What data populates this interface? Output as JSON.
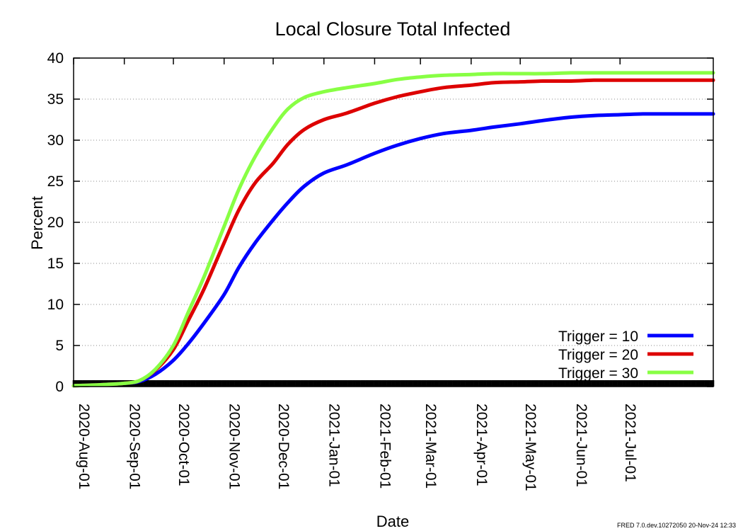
{
  "chart_data": {
    "type": "line",
    "title": "Local Closure Total Infected",
    "xlabel": "Date",
    "ylabel": "Percent",
    "ylim": [
      0,
      40
    ],
    "yticks": [
      "0",
      "5",
      "10",
      "15",
      "20",
      "25",
      "30",
      "35",
      "40"
    ],
    "xlim": [
      "2020-08-01",
      "2021-08-27"
    ],
    "xticks": [
      "2020-Aug-01",
      "2020-Sep-01",
      "2020-Oct-01",
      "2020-Nov-01",
      "2020-Dec-01",
      "2021-Jan-01",
      "2021-Feb-01",
      "2021-Mar-01",
      "2021-Apr-01",
      "2021-May-01",
      "2021-Jun-01",
      "2021-Jul-01"
    ],
    "grid": "horizontal dotted",
    "legend_position": "bottom-right",
    "series": [
      {
        "name": "Trigger = 10",
        "color": "#0000ff",
        "x": [
          "2020-08-01",
          "2020-08-15",
          "2020-08-25",
          "2020-09-01",
          "2020-09-10",
          "2020-09-20",
          "2020-10-01",
          "2020-10-10",
          "2020-10-20",
          "2020-11-01",
          "2020-11-10",
          "2020-11-20",
          "2020-12-01",
          "2020-12-10",
          "2020-12-20",
          "2021-01-01",
          "2021-01-15",
          "2021-02-01",
          "2021-02-15",
          "2021-03-01",
          "2021-03-15",
          "2021-04-01",
          "2021-04-15",
          "2021-05-01",
          "2021-05-15",
          "2021-06-01",
          "2021-06-15",
          "2021-07-01",
          "2021-07-15",
          "2021-08-01",
          "2021-08-27"
        ],
        "values": [
          0.1,
          0.2,
          0.3,
          0.4,
          0.6,
          1.5,
          3.2,
          5.2,
          7.8,
          11.2,
          14.5,
          17.5,
          20.3,
          22.4,
          24.4,
          26.0,
          27.0,
          28.4,
          29.4,
          30.2,
          30.8,
          31.2,
          31.6,
          32.0,
          32.4,
          32.8,
          33.0,
          33.1,
          33.2,
          33.2,
          33.2
        ]
      },
      {
        "name": "Trigger = 20",
        "color": "#dd0000",
        "x": [
          "2020-08-01",
          "2020-08-15",
          "2020-08-25",
          "2020-09-01",
          "2020-09-10",
          "2020-09-20",
          "2020-10-01",
          "2020-10-10",
          "2020-10-20",
          "2020-11-01",
          "2020-11-10",
          "2020-11-20",
          "2020-12-01",
          "2020-12-10",
          "2020-12-20",
          "2021-01-01",
          "2021-01-15",
          "2021-02-01",
          "2021-02-15",
          "2021-03-01",
          "2021-03-15",
          "2021-04-01",
          "2021-04-15",
          "2021-05-01",
          "2021-05-15",
          "2021-06-01",
          "2021-06-15",
          "2021-07-01",
          "2021-07-15",
          "2021-08-01",
          "2021-08-27"
        ],
        "values": [
          0.1,
          0.2,
          0.3,
          0.4,
          0.7,
          2.0,
          4.5,
          8.0,
          12.0,
          17.5,
          21.5,
          24.8,
          27.2,
          29.5,
          31.3,
          32.5,
          33.3,
          34.5,
          35.3,
          35.9,
          36.4,
          36.7,
          37.0,
          37.1,
          37.2,
          37.2,
          37.3,
          37.3,
          37.3,
          37.3,
          37.3
        ]
      },
      {
        "name": "Trigger = 30",
        "color": "#88ff44",
        "x": [
          "2020-08-01",
          "2020-08-15",
          "2020-08-25",
          "2020-09-01",
          "2020-09-10",
          "2020-09-20",
          "2020-10-01",
          "2020-10-10",
          "2020-10-20",
          "2020-11-01",
          "2020-11-10",
          "2020-11-20",
          "2020-12-01",
          "2020-12-10",
          "2020-12-20",
          "2021-01-01",
          "2021-01-15",
          "2021-02-01",
          "2021-02-15",
          "2021-03-01",
          "2021-03-15",
          "2021-04-01",
          "2021-04-15",
          "2021-05-01",
          "2021-05-15",
          "2021-06-01",
          "2021-06-15",
          "2021-07-01",
          "2021-07-15",
          "2021-08-01",
          "2021-08-27"
        ],
        "values": [
          0.1,
          0.2,
          0.3,
          0.4,
          0.7,
          2.1,
          5.0,
          9.0,
          13.5,
          19.5,
          24.0,
          28.0,
          31.5,
          33.8,
          35.2,
          35.9,
          36.4,
          36.9,
          37.4,
          37.7,
          37.9,
          38.0,
          38.1,
          38.1,
          38.1,
          38.2,
          38.2,
          38.2,
          38.2,
          38.2,
          38.2
        ]
      }
    ]
  },
  "footer_text": "FRED 7.0.dev.10272050 20-Nov-24 12:33"
}
